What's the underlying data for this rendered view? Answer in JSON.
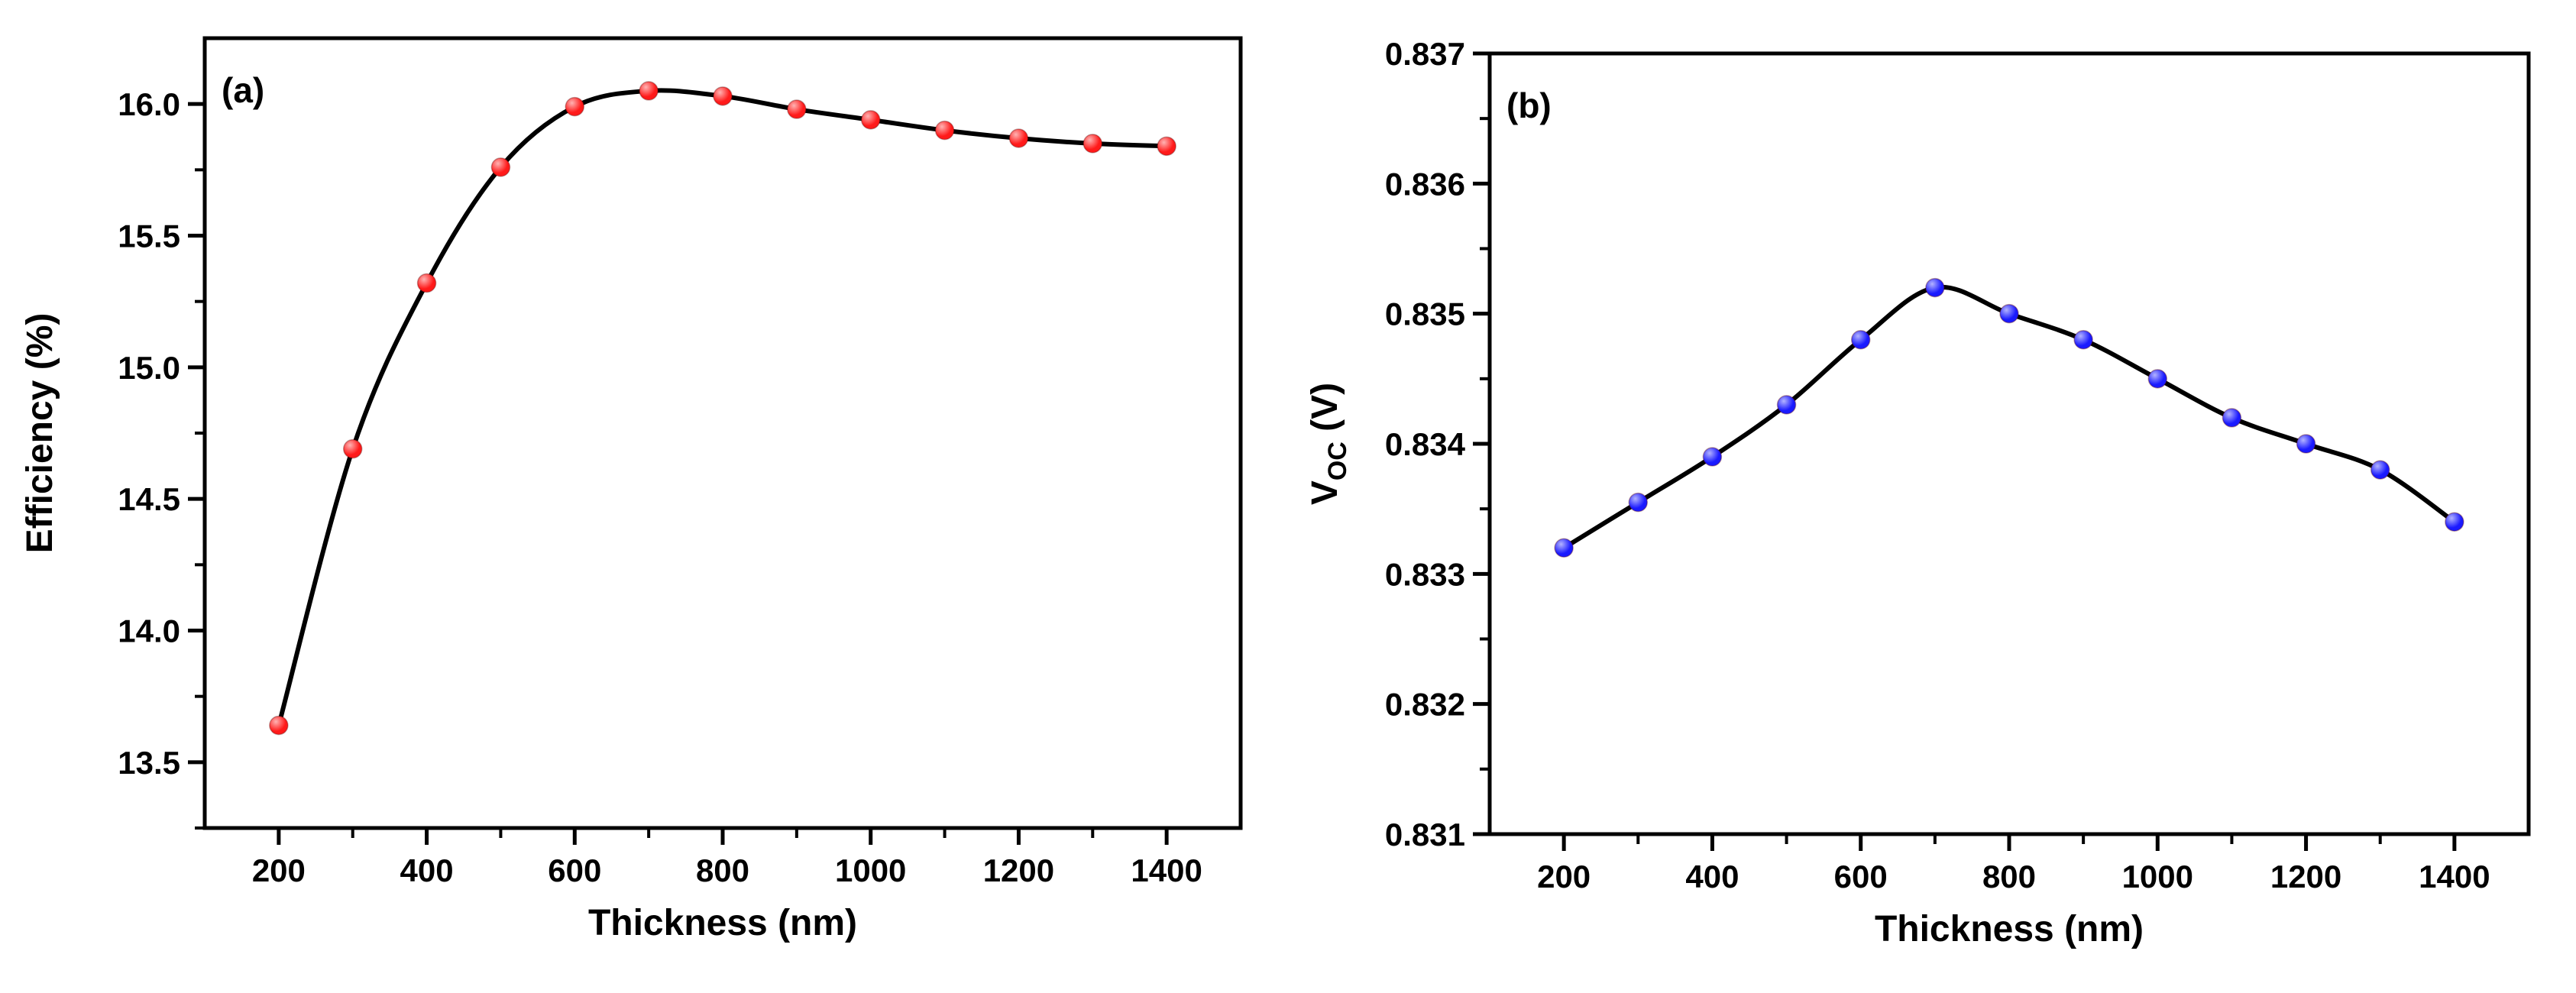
{
  "chart_data": [
    {
      "panel_label": "(a)",
      "type": "line",
      "xlabel": "Thickness (nm)",
      "ylabel": "Efficiency (%)",
      "xlim": [
        100,
        1500
      ],
      "ylim": [
        13.25,
        16.25
      ],
      "xticks": [
        200,
        400,
        600,
        800,
        1000,
        1200,
        1400
      ],
      "xtick_labels": [
        "200",
        "400",
        "600",
        "800",
        "1000",
        "1200",
        "1400"
      ],
      "xminor": [
        300,
        500,
        700,
        900,
        1100,
        1300
      ],
      "yticks": [
        13.5,
        14.0,
        14.5,
        15.0,
        15.5,
        16.0
      ],
      "ytick_labels": [
        "13.5",
        "14.0",
        "14.5",
        "15.0",
        "15.5",
        "16.0"
      ],
      "yminor": [
        13.25,
        13.75,
        14.25,
        14.75,
        15.25,
        15.75
      ],
      "marker_color": "#ff1a1a",
      "marker_highlight": "#ffb3b3",
      "line_color": "#000000",
      "series": [
        {
          "name": "Efficiency",
          "x": [
            200,
            300,
            400,
            500,
            600,
            700,
            800,
            900,
            1000,
            1100,
            1200,
            1300,
            1400
          ],
          "y": [
            13.64,
            14.69,
            15.32,
            15.76,
            15.99,
            16.05,
            16.03,
            15.98,
            15.94,
            15.9,
            15.87,
            15.85,
            15.84
          ]
        }
      ]
    },
    {
      "panel_label": "(b)",
      "type": "line",
      "xlabel": "Thickness (nm)",
      "ylabel_main": "V",
      "ylabel_sub": "OC",
      "ylabel_unit": " (V)",
      "xlim": [
        100,
        1500
      ],
      "ylim": [
        0.831,
        0.837
      ],
      "xticks": [
        200,
        400,
        600,
        800,
        1000,
        1200,
        1400
      ],
      "xtick_labels": [
        "200",
        "400",
        "600",
        "800",
        "1000",
        "1200",
        "1400"
      ],
      "xminor": [
        300,
        500,
        700,
        900,
        1100,
        1300
      ],
      "yticks": [
        0.831,
        0.832,
        0.833,
        0.834,
        0.835,
        0.836,
        0.837
      ],
      "ytick_labels": [
        "0.831",
        "0.832",
        "0.833",
        "0.834",
        "0.835",
        "0.836",
        "0.837"
      ],
      "yminor": [
        0.8315,
        0.8325,
        0.8335,
        0.8345,
        0.8355,
        0.8365
      ],
      "marker_color": "#1a1aff",
      "marker_highlight": "#b3b3ff",
      "line_color": "#000000",
      "series": [
        {
          "name": "Voc",
          "x": [
            200,
            300,
            400,
            500,
            600,
            700,
            800,
            900,
            1000,
            1100,
            1200,
            1300,
            1400
          ],
          "y": [
            0.8332,
            0.83355,
            0.8339,
            0.8343,
            0.8348,
            0.8352,
            0.835,
            0.8348,
            0.8345,
            0.8342,
            0.834,
            0.8338,
            0.8334
          ]
        }
      ]
    }
  ]
}
